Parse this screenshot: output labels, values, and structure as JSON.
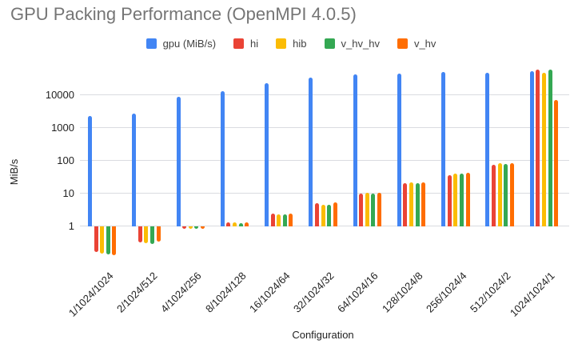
{
  "title": "GPU Packing Performance (OpenMPI 4.0.5)",
  "axes": {
    "y_title": "MiB/s",
    "x_title": "Configuration",
    "y_tick_labels": [
      "1",
      "10",
      "100",
      "1000",
      "10000"
    ]
  },
  "colors": {
    "title_gray": "#757575",
    "gridline": "#dadce0",
    "axis_text": "#1f1f1f",
    "legend_text": "#424242"
  },
  "chart_data": {
    "type": "bar",
    "y_scale": "log",
    "title": "GPU Packing Performance (OpenMPI 4.0.5)",
    "xlabel": "Configuration",
    "ylabel": "MiB/s",
    "ylim": [
      0.1,
      70000
    ],
    "baseline_value": 1,
    "gridline_values": [
      1,
      10,
      100,
      1000,
      10000
    ],
    "legend_position": "top",
    "grid": "horizontal-only",
    "categories": [
      "1/1024/1024",
      "2/1024/512",
      "4/1024/256",
      "8/1024/128",
      "16/1024/64",
      "32/1024/32",
      "64/1024/16",
      "128/1024/8",
      "256/1024/4",
      "512/1024/2",
      "1024/1024/1"
    ],
    "series": [
      {
        "name": "gpu (MiB/s)",
        "color": "#4285F4",
        "values": [
          2300,
          2650,
          8600,
          13000,
          23000,
          34000,
          41000,
          45000,
          48000,
          46000,
          51000
        ]
      },
      {
        "name": "hi",
        "color": "#EA4335",
        "values": [
          0.16,
          0.31,
          0.88,
          1.3,
          2.4,
          4.8,
          9.5,
          20,
          36,
          73,
          57000
        ]
      },
      {
        "name": "hib",
        "color": "#FBBC04",
        "values": [
          0.145,
          0.29,
          0.9,
          1.25,
          2.3,
          4.5,
          10,
          21,
          39,
          80,
          47000
        ]
      },
      {
        "name": "v_hv_hv",
        "color": "#34A853",
        "values": [
          0.135,
          0.28,
          0.92,
          1.2,
          2.25,
          4.3,
          9.8,
          20,
          39,
          75,
          57000
        ]
      },
      {
        "name": "v_hv",
        "color": "#FF6D01",
        "values": [
          0.125,
          0.33,
          0.85,
          1.25,
          2.35,
          5.1,
          10,
          21,
          41,
          82,
          6800
        ]
      }
    ]
  }
}
